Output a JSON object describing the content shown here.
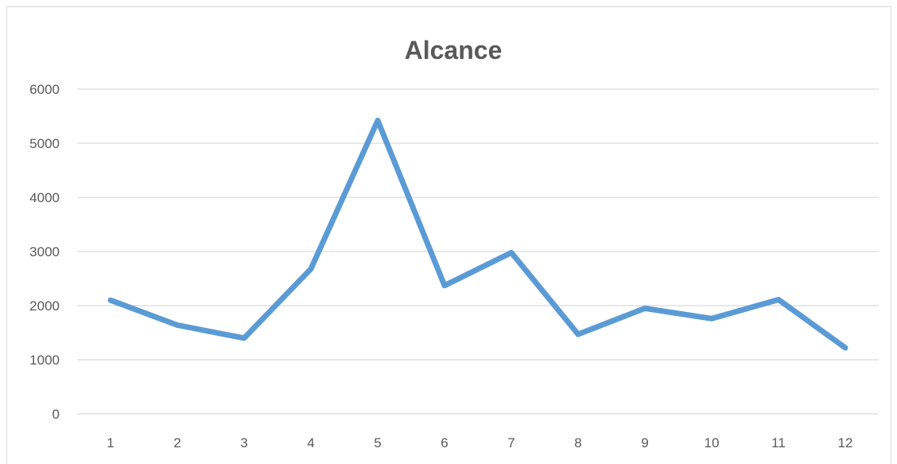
{
  "chart_data": {
    "type": "line",
    "title": "Alcance",
    "xlabel": "",
    "ylabel": "",
    "categories": [
      "1",
      "2",
      "3",
      "4",
      "5",
      "6",
      "7",
      "8",
      "9",
      "10",
      "11",
      "12"
    ],
    "series": [
      {
        "values": [
          2100,
          1640,
          1400,
          2680,
          5420,
          2370,
          2980,
          1470,
          1950,
          1760,
          2110,
          1220
        ]
      }
    ],
    "ylim": [
      0,
      6000
    ],
    "yticks": [
      "0",
      "1000",
      "2000",
      "3000",
      "4000",
      "5000",
      "6000"
    ],
    "grid": true,
    "legend": "none",
    "colors": {
      "line": "#5b9bd5",
      "grid": "#d9d9d9",
      "text": "#595959"
    }
  }
}
